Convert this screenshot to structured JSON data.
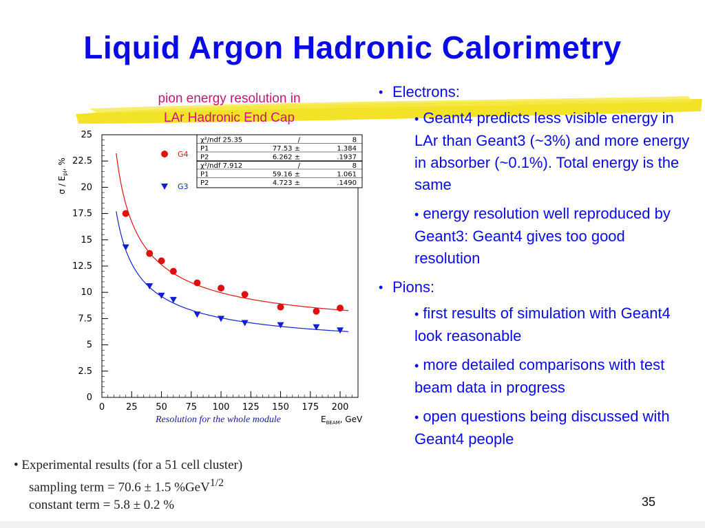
{
  "slide": {
    "title": "Liquid Argon Hadronic Calorimetry",
    "chart_caption_line1": "pion energy resolution in",
    "chart_caption_line2": "LAr Hadronic End Cap",
    "page_number": "35",
    "colors": {
      "title": "#0a0ae6",
      "caption": "#cc1177",
      "highlighter": "#f2e21c",
      "g4": "#e01010",
      "g3": "#1020d0"
    }
  },
  "bullets": [
    {
      "label": "Electrons:",
      "children": [
        "Geant4 predicts less visible energy in LAr than Geant3 (~3%) and more energy in absorber (~0.1%). Total energy is the same",
        "energy resolution well reproduced by Geant3: Geant4 gives too good resolution"
      ]
    },
    {
      "label": "Pions:",
      "children": [
        "first results of simulation with Geant4 look reasonable",
        "more detailed comparisons with test beam data in progress",
        "open questions being discussed with Geant4 people"
      ]
    }
  ],
  "experimental": {
    "line1": "Experimental results (for a 51 cell cluster)",
    "line2": "sampling term = 70.6 ± 1.5 %GeV",
    "line2_sup": "1/2",
    "line3": "constant term = 5.8 ± 0.2 %"
  },
  "chart_data": {
    "type": "scatter",
    "ylabel": "σ / E",
    "ylabel_sub": "pi",
    "ylabel_unit": ", %",
    "xlabel": "E",
    "xlabel_sub": "BEAM",
    "xlabel_unit": ", GeV",
    "footer": "Resolution for the whole module",
    "xlim": [
      0,
      215
    ],
    "ylim": [
      0,
      25
    ],
    "xticks": [
      25,
      50,
      75,
      100,
      125,
      150,
      175,
      200
    ],
    "yticks": [
      0,
      2.5,
      5,
      7.5,
      10,
      12.5,
      15,
      17.5,
      20,
      22.5,
      25
    ],
    "ytick_labels": [
      "0",
      "2.5",
      "5",
      "7.5",
      "10",
      "12.5",
      "15",
      "17.5",
      "20",
      "22.5",
      "25"
    ],
    "series": [
      {
        "name": "G4",
        "marker": "circle",
        "color": "#e01010",
        "x": [
          20,
          40,
          50,
          60,
          80,
          100,
          120,
          150,
          180,
          200
        ],
        "y": [
          17.5,
          13.7,
          13.0,
          12.0,
          10.9,
          10.4,
          9.8,
          8.6,
          8.2,
          8.5
        ],
        "fit": {
          "p1": 77.53,
          "p2": 6.262
        }
      },
      {
        "name": "G3",
        "marker": "triangle-down",
        "color": "#1020d0",
        "x": [
          20,
          40,
          50,
          60,
          80,
          100,
          120,
          150,
          180,
          200
        ],
        "y": [
          14.3,
          10.6,
          9.7,
          9.3,
          7.9,
          7.5,
          7.1,
          6.9,
          6.7,
          6.4
        ],
        "fit": {
          "p1": 59.16,
          "p2": 4.723
        }
      }
    ],
    "stats_box": [
      [
        [
          "χ²/ndf 25.35",
          "/",
          "8"
        ],
        [
          "P1",
          "77.53 ±",
          "1.384"
        ],
        [
          "P2",
          "6.262 ±",
          ".1937"
        ]
      ],
      [
        [
          "χ²/ndf 7.912",
          "/",
          "8"
        ],
        [
          "P1",
          "59.16 ±",
          "1.061"
        ],
        [
          "P2",
          "4.723 ±",
          ".1490"
        ]
      ]
    ]
  }
}
